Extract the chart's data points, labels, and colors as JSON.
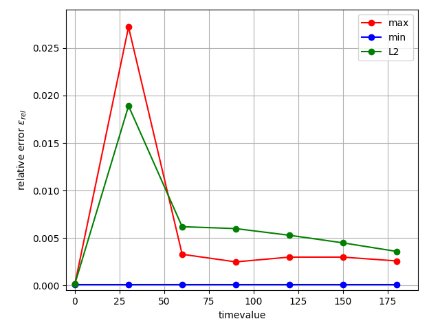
{
  "x": [
    0,
    30,
    60,
    90,
    120,
    150,
    180
  ],
  "max": [
    0.0002,
    0.0272,
    0.0033,
    0.0025,
    0.003,
    0.003,
    0.0026
  ],
  "min": [
    0.0001,
    0.0001,
    0.0001,
    0.0001,
    0.0001,
    0.0001,
    0.0001
  ],
  "L2": [
    0.0002,
    0.0189,
    0.0062,
    0.006,
    0.0053,
    0.0045,
    0.0036
  ],
  "max_color": "#ff0000",
  "min_color": "#0000ff",
  "L2_color": "#008000",
  "xlabel": "timevalue",
  "ylabel": "relative error $\\varepsilon_{rel}$",
  "ylim": [
    -0.0005,
    0.029
  ],
  "xlim": [
    -5,
    192
  ],
  "xticks": [
    0,
    25,
    50,
    75,
    100,
    125,
    150,
    175
  ],
  "yticks": [
    0.0,
    0.005,
    0.01,
    0.015,
    0.02,
    0.025
  ],
  "grid": true,
  "legend_loc": "upper right",
  "bg_color": "#ffffff",
  "grid_color": "#b0b0b0",
  "marker_size": 6,
  "linewidth": 1.5
}
